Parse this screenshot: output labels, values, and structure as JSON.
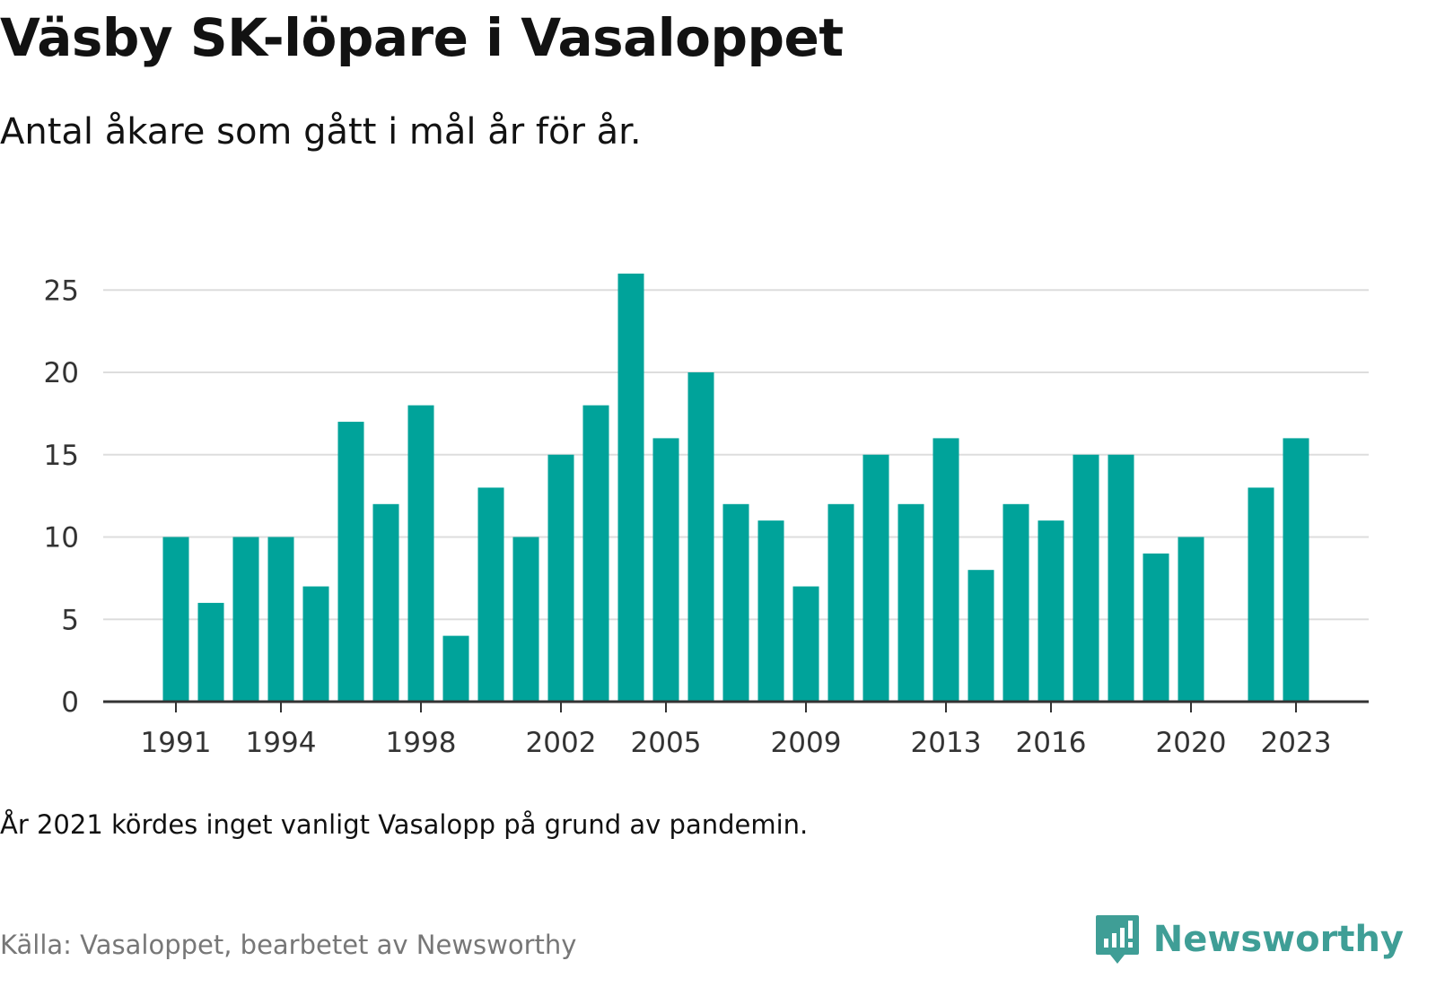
{
  "header": {
    "title": "Väsby SK-löpare i Vasaloppet",
    "subtitle": "Antal åkare som gått i mål år för år."
  },
  "footer": {
    "note": "År 2021 kördes inget vanligt Vasalopp på grund av pandemin.",
    "source": "Källa: Vasaloppet, bearbetet av Newsworthy",
    "brand": "Newsworthy"
  },
  "colors": {
    "bar": "#00a39a",
    "gridline": "#dddddd",
    "axis": "#333333",
    "brand": "#3f9e96"
  },
  "chart_data": {
    "type": "bar",
    "categories": [
      "1991",
      "1992",
      "1993",
      "1994",
      "1995",
      "1996",
      "1997",
      "1998",
      "1999",
      "2000",
      "2001",
      "2002",
      "2003",
      "2004",
      "2005",
      "2006",
      "2007",
      "2008",
      "2009",
      "2010",
      "2011",
      "2012",
      "2013",
      "2014",
      "2015",
      "2016",
      "2017",
      "2018",
      "2019",
      "2020",
      "2021",
      "2022",
      "2023"
    ],
    "values": [
      10,
      6,
      10,
      10,
      7,
      17,
      12,
      18,
      4,
      13,
      10,
      15,
      18,
      26,
      16,
      20,
      12,
      11,
      7,
      12,
      15,
      12,
      16,
      8,
      12,
      11,
      15,
      15,
      9,
      10,
      null,
      13,
      16
    ],
    "x_tick_labels": [
      "1991",
      "1994",
      "1998",
      "2002",
      "2005",
      "2009",
      "2013",
      "2016",
      "2020",
      "2023"
    ],
    "y_ticks": [
      0,
      5,
      10,
      15,
      20,
      25
    ],
    "ylim": [
      0,
      27
    ],
    "grid": true,
    "legend": "none"
  }
}
